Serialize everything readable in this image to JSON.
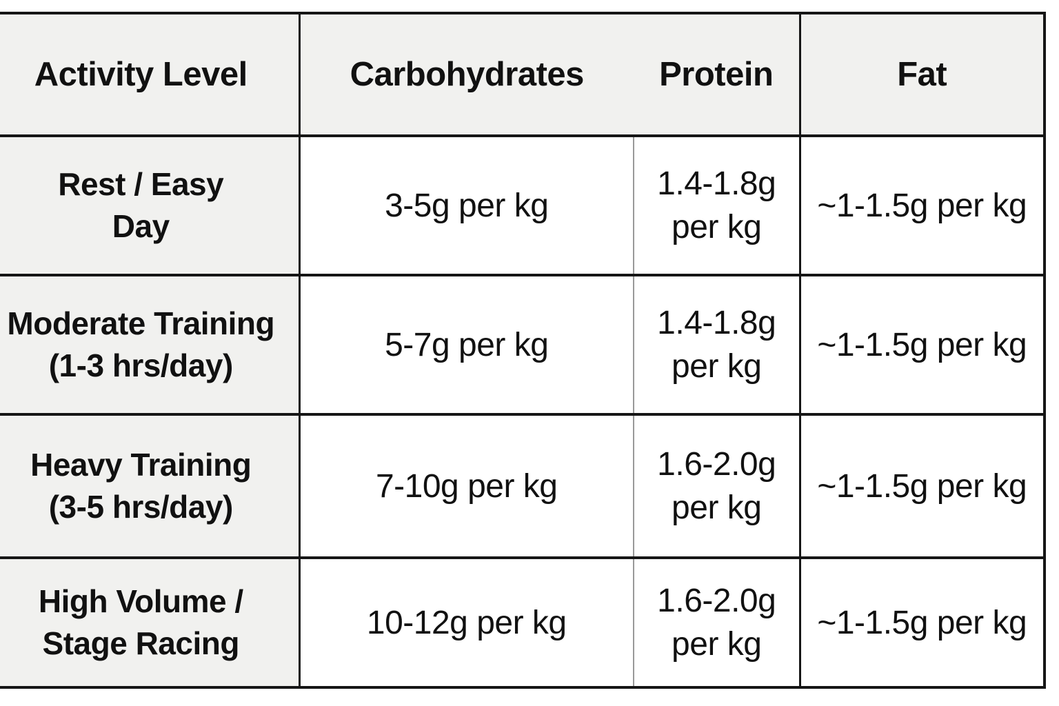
{
  "colors": {
    "cell_bg_gray": "#f1f1ef",
    "cell_bg_white": "#ffffff",
    "grid_black": "#161616",
    "grid_thin_gray": "#999999",
    "text": "#111111"
  },
  "table": {
    "headers": [
      "Activity Level",
      "Carbohydrates",
      "Protein",
      "Fat"
    ],
    "rows": [
      {
        "activity_lines": [
          "Rest / Easy",
          "Day"
        ],
        "carbs": "3-5g per kg",
        "protein_lines": [
          "1.4-1.8g",
          "per kg"
        ],
        "fat": "~1-1.5g per kg"
      },
      {
        "activity_lines": [
          "Moderate Training",
          "(1-3 hrs/day)"
        ],
        "carbs": "5-7g per kg",
        "protein_lines": [
          "1.4-1.8g",
          "per kg"
        ],
        "fat": "~1-1.5g per kg"
      },
      {
        "activity_lines": [
          "Heavy Training",
          "(3-5 hrs/day)"
        ],
        "carbs": "7-10g per kg",
        "protein_lines": [
          "1.6-2.0g",
          "per kg"
        ],
        "fat": "~1-1.5g per kg"
      },
      {
        "activity_lines": [
          "High Volume /",
          "Stage Racing"
        ],
        "carbs": "10-12g per kg",
        "protein_lines": [
          "1.6-2.0g",
          "per kg"
        ],
        "fat": "~1-1.5g per kg"
      }
    ]
  },
  "chart_data": {
    "type": "table",
    "columns": [
      "Activity Level",
      "Carbohydrates",
      "Protein",
      "Fat"
    ],
    "rows": [
      [
        "Rest / Easy Day",
        "3-5g per kg",
        "1.4-1.8g per kg",
        "~1-1.5g per kg"
      ],
      [
        "Moderate Training (1-3 hrs/day)",
        "5-7g per kg",
        "1.4-1.8g per kg",
        "~1-1.5g per kg"
      ],
      [
        "Heavy Training (3-5 hrs/day)",
        "7-10g per kg",
        "1.6-2.0g per kg",
        "~1-1.5g per kg"
      ],
      [
        "High Volume / Stage Racing",
        "10-12g per kg",
        "1.6-2.0g per kg",
        "~1-1.5g per kg"
      ]
    ]
  }
}
